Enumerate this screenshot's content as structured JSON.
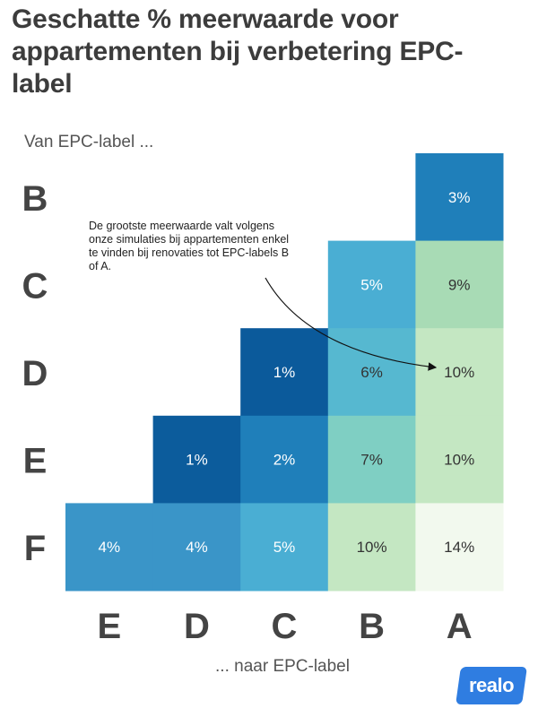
{
  "title": "Geschatte % meerwaarde voor appartementen bij verbetering EPC-label",
  "from_axis_label": "Van EPC-label ...",
  "to_axis_label": "... naar EPC-label",
  "annotation": "De grootste meerwaarde valt volgens onze simulaties bij appartementen enkel te vinden bij renovaties tot EPC-labels B of A.",
  "logo_text": "realo",
  "chart_data": {
    "type": "heatmap",
    "title": "Geschatte % meerwaarde voor appartementen bij verbetering EPC-label",
    "xlabel": "... naar EPC-label",
    "ylabel": "Van EPC-label ...",
    "columns": [
      "E",
      "D",
      "C",
      "B",
      "A"
    ],
    "rows": [
      "B",
      "C",
      "D",
      "E",
      "F"
    ],
    "values": [
      [
        null,
        null,
        null,
        null,
        3
      ],
      [
        null,
        null,
        null,
        5,
        9
      ],
      [
        null,
        null,
        1,
        6,
        10
      ],
      [
        null,
        1,
        2,
        7,
        10
      ],
      [
        4,
        4,
        5,
        10,
        14
      ]
    ],
    "value_suffix": "%",
    "cell_colors": [
      [
        null,
        null,
        null,
        null,
        "#1f7fba"
      ],
      [
        null,
        null,
        null,
        "#4aaed3",
        "#a8dbb5"
      ],
      [
        null,
        null,
        "#0b5a9b",
        "#56b8d0",
        "#c4e7c2"
      ],
      [
        null,
        "#0c5c9c",
        "#1f7fba",
        "#7fcfc3",
        "#c4e7c2"
      ],
      [
        "#3a95c8",
        "#3a95c8",
        "#4aaed3",
        "#c4e7c2",
        "#f2f9ee"
      ]
    ],
    "text_colors": [
      [
        null,
        null,
        null,
        null,
        "#ffffff"
      ],
      [
        null,
        null,
        null,
        "#ffffff",
        "#333333"
      ],
      [
        null,
        null,
        "#ffffff",
        "#333333",
        "#333333"
      ],
      [
        null,
        "#ffffff",
        "#ffffff",
        "#333333",
        "#333333"
      ],
      [
        "#ffffff",
        "#ffffff",
        "#ffffff",
        "#333333",
        "#333333"
      ]
    ]
  }
}
